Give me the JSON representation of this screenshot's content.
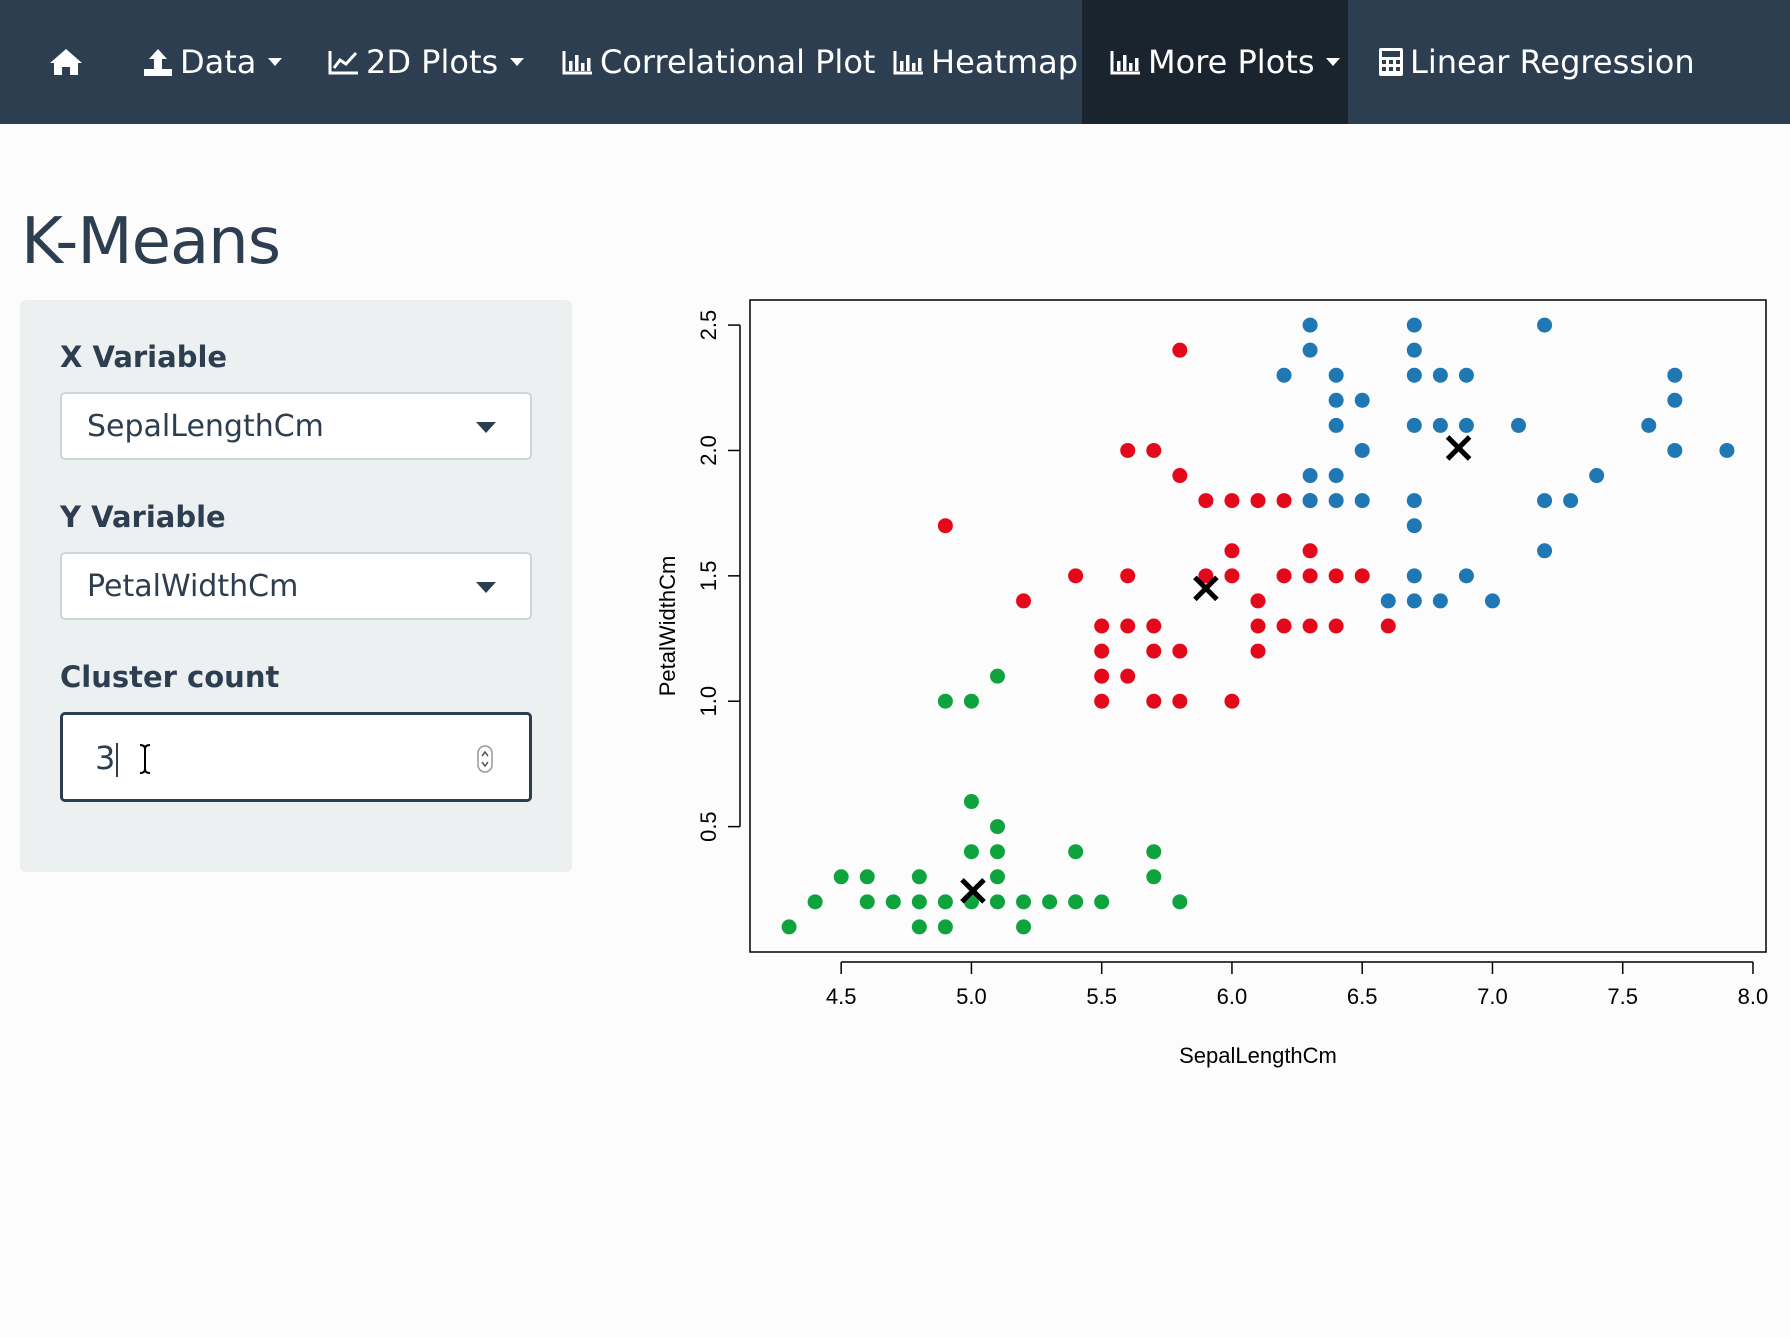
{
  "navbar": {
    "items": [
      {
        "label": "",
        "icon": "home-icon"
      },
      {
        "label": "Data",
        "icon": "upload-icon",
        "dropdown": true
      },
      {
        "label": "2D Plots",
        "icon": "line-chart-icon",
        "dropdown": true
      },
      {
        "label": "Correlational Plot",
        "icon": "bar-chart-icon"
      },
      {
        "label": "Heatmap",
        "icon": "bar-chart-icon"
      },
      {
        "label": "More Plots",
        "icon": "bar-chart-icon",
        "dropdown": true,
        "active": true
      },
      {
        "label": "Linear Regression",
        "icon": "calculator-icon"
      }
    ]
  },
  "page": {
    "title": "K-Means"
  },
  "sidebar": {
    "x_variable": {
      "label": "X Variable",
      "value": "SepalLengthCm"
    },
    "y_variable": {
      "label": "Y Variable",
      "value": "PetalWidthCm"
    },
    "cluster_count": {
      "label": "Cluster count",
      "value": "3"
    }
  },
  "colors": {
    "navbar": "#2c3e50",
    "navbar_active": "#1a242f",
    "cluster_1": "#0fa33e",
    "cluster_2": "#e3091b",
    "cluster_3": "#1f77b4",
    "centroid": "#000000"
  },
  "chart_data": {
    "type": "scatter",
    "xlabel": "SepalLengthCm",
    "ylabel": "PetalWidthCm",
    "xlim": [
      4.15,
      8.05
    ],
    "ylim": [
      0.0,
      2.6
    ],
    "xticks": [
      "4.5",
      "5.0",
      "5.5",
      "6.0",
      "6.5",
      "7.0",
      "7.5",
      "8.0"
    ],
    "xtick_values": [
      4.5,
      5.0,
      5.5,
      6.0,
      6.5,
      7.0,
      7.5,
      8.0
    ],
    "yticks": [
      "0.5",
      "1.0",
      "1.5",
      "2.0",
      "2.5"
    ],
    "ytick_values": [
      0.5,
      1.0,
      1.5,
      2.0,
      2.5
    ],
    "grid": false,
    "series": [
      {
        "color": "#0fa33e",
        "points": [
          [
            4.3,
            0.1
          ],
          [
            4.4,
            0.2
          ],
          [
            4.5,
            0.3
          ],
          [
            4.6,
            0.3
          ],
          [
            4.6,
            0.2
          ],
          [
            4.7,
            0.2
          ],
          [
            4.8,
            0.3
          ],
          [
            4.8,
            0.2
          ],
          [
            4.8,
            0.1
          ],
          [
            4.9,
            0.2
          ],
          [
            4.9,
            0.1
          ],
          [
            4.9,
            1.0
          ],
          [
            5.0,
            0.6
          ],
          [
            5.0,
            0.4
          ],
          [
            5.0,
            0.2
          ],
          [
            5.0,
            1.0
          ],
          [
            5.1,
            0.5
          ],
          [
            5.1,
            0.4
          ],
          [
            5.1,
            0.3
          ],
          [
            5.1,
            0.2
          ],
          [
            5.1,
            1.1
          ],
          [
            5.2,
            0.2
          ],
          [
            5.2,
            0.1
          ],
          [
            5.3,
            0.2
          ],
          [
            5.4,
            0.4
          ],
          [
            5.4,
            0.2
          ],
          [
            5.5,
            0.2
          ],
          [
            5.7,
            0.4
          ],
          [
            5.7,
            0.3
          ],
          [
            5.8,
            0.2
          ]
        ]
      },
      {
        "color": "#e3091b",
        "points": [
          [
            4.9,
            1.7
          ],
          [
            5.2,
            1.4
          ],
          [
            5.4,
            1.5
          ],
          [
            5.5,
            1.3
          ],
          [
            5.5,
            1.2
          ],
          [
            5.5,
            1.1
          ],
          [
            5.5,
            1.0
          ],
          [
            5.6,
            2.0
          ],
          [
            5.6,
            1.5
          ],
          [
            5.6,
            1.3
          ],
          [
            5.6,
            1.1
          ],
          [
            5.7,
            2.0
          ],
          [
            5.7,
            1.3
          ],
          [
            5.7,
            1.2
          ],
          [
            5.7,
            1.0
          ],
          [
            5.8,
            2.4
          ],
          [
            5.8,
            1.9
          ],
          [
            5.8,
            1.2
          ],
          [
            5.8,
            1.0
          ],
          [
            5.9,
            1.8
          ],
          [
            5.9,
            1.5
          ],
          [
            6.0,
            1.8
          ],
          [
            6.0,
            1.6
          ],
          [
            6.0,
            1.5
          ],
          [
            6.0,
            1.0
          ],
          [
            6.1,
            1.8
          ],
          [
            6.1,
            1.4
          ],
          [
            6.1,
            1.3
          ],
          [
            6.1,
            1.2
          ],
          [
            6.2,
            1.8
          ],
          [
            6.2,
            1.5
          ],
          [
            6.2,
            1.3
          ],
          [
            6.3,
            1.8
          ],
          [
            6.3,
            1.6
          ],
          [
            6.3,
            1.5
          ],
          [
            6.3,
            1.3
          ],
          [
            6.4,
            1.5
          ],
          [
            6.4,
            1.3
          ],
          [
            6.5,
            1.5
          ],
          [
            6.6,
            1.3
          ]
        ]
      },
      {
        "color": "#1f77b4",
        "points": [
          [
            6.2,
            2.3
          ],
          [
            6.3,
            2.5
          ],
          [
            6.3,
            2.4
          ],
          [
            6.3,
            1.9
          ],
          [
            6.3,
            1.8
          ],
          [
            6.4,
            2.3
          ],
          [
            6.4,
            2.2
          ],
          [
            6.4,
            2.1
          ],
          [
            6.4,
            1.9
          ],
          [
            6.4,
            1.8
          ],
          [
            6.5,
            2.2
          ],
          [
            6.5,
            2.0
          ],
          [
            6.5,
            1.8
          ],
          [
            6.6,
            1.4
          ],
          [
            6.7,
            2.5
          ],
          [
            6.7,
            2.4
          ],
          [
            6.7,
            2.3
          ],
          [
            6.7,
            2.1
          ],
          [
            6.7,
            1.8
          ],
          [
            6.7,
            1.7
          ],
          [
            6.7,
            1.5
          ],
          [
            6.7,
            1.4
          ],
          [
            6.8,
            2.3
          ],
          [
            6.8,
            2.1
          ],
          [
            6.8,
            1.4
          ],
          [
            6.9,
            2.3
          ],
          [
            6.9,
            2.1
          ],
          [
            6.9,
            1.5
          ],
          [
            7.0,
            1.4
          ],
          [
            7.1,
            2.1
          ],
          [
            7.2,
            2.5
          ],
          [
            7.2,
            1.8
          ],
          [
            7.2,
            1.6
          ],
          [
            7.3,
            1.8
          ],
          [
            7.4,
            1.9
          ],
          [
            7.6,
            2.1
          ],
          [
            7.7,
            2.3
          ],
          [
            7.7,
            2.2
          ],
          [
            7.7,
            2.0
          ],
          [
            7.9,
            2.0
          ]
        ]
      }
    ],
    "centroids": [
      [
        5.006,
        0.244
      ],
      [
        5.9,
        1.45
      ],
      [
        6.87,
        2.01
      ]
    ]
  }
}
